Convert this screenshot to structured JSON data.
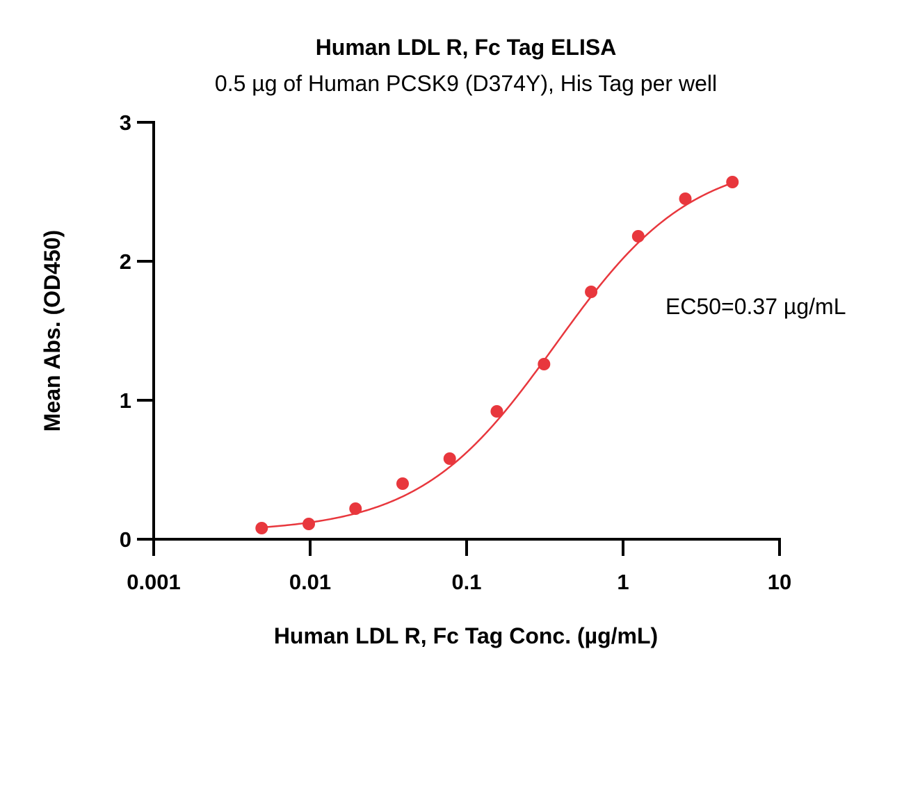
{
  "chart_data": {
    "type": "scatter",
    "title": "Human LDL R, Fc Tag ELISA",
    "subtitle": "0.5 µg of Human PCSK9 (D374Y), His Tag per well",
    "xlabel": "Human LDL R, Fc Tag Conc. (µg/mL)",
    "ylabel": "Mean Abs. (OD450)",
    "x_scale": "log",
    "xlim": [
      0.001,
      10
    ],
    "ylim": [
      0,
      3
    ],
    "x_ticks": [
      0.001,
      0.01,
      0.1,
      1,
      10
    ],
    "x_tick_labels": [
      "0.001",
      "0.01",
      "0.1",
      "1",
      "10"
    ],
    "y_ticks": [
      0,
      1,
      2,
      3
    ],
    "y_tick_labels": [
      "0",
      "1",
      "2",
      "3"
    ],
    "grid": false,
    "legend": "none",
    "color": "#e8373d",
    "series": [
      {
        "x": [
          0.0049,
          0.0098,
          0.0195,
          0.039,
          0.078,
          0.156,
          0.3125,
          0.625,
          1.25,
          2.5,
          5
        ],
        "y": [
          0.08,
          0.11,
          0.22,
          0.4,
          0.58,
          0.92,
          1.26,
          1.78,
          2.18,
          2.45,
          2.57
        ]
      }
    ],
    "fit": {
      "type": "4PL",
      "bottom": 0.05,
      "top": 2.75,
      "ec50": 0.37,
      "hill": 1.0
    },
    "annotation": "EC50=0.37 µg/mL"
  }
}
